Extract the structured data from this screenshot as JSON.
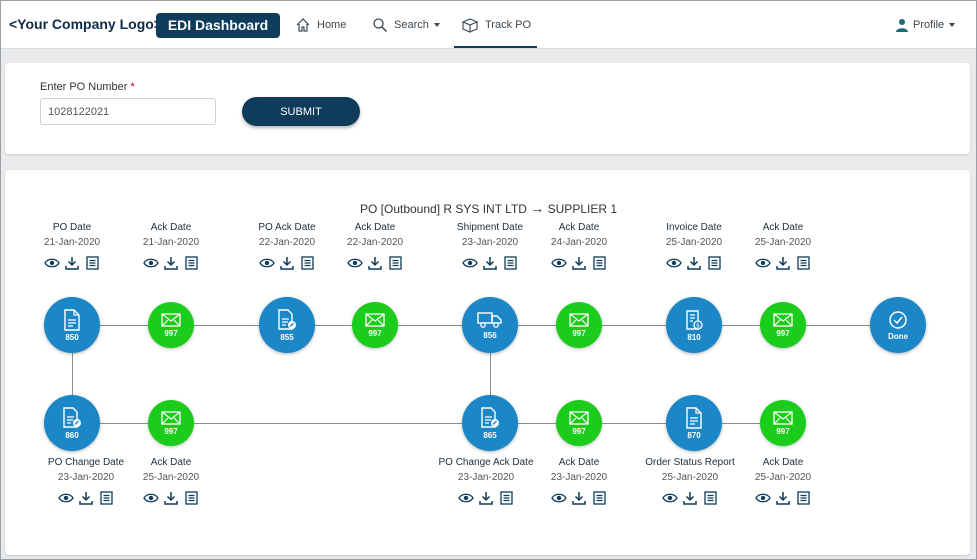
{
  "header": {
    "logo": "<Your Company Logo>",
    "brand": "EDI Dashboard",
    "nav": {
      "home": "Home",
      "search": "Search",
      "track": "Track PO",
      "profile": "Profile"
    }
  },
  "po_form": {
    "label": "Enter PO Number",
    "required_mark": "*",
    "value": "1028122021",
    "submit_label": "SUBMIT"
  },
  "flow": {
    "title_left": "PO [Outbound] R SYS INT LTD",
    "title_arrow": "→",
    "title_right": "SUPPLIER 1",
    "top_stages": [
      {
        "label": "PO Date",
        "date": "21-Jan-2020"
      },
      {
        "label": "Ack Date",
        "date": "21-Jan-2020"
      },
      {
        "label": "PO Ack Date",
        "date": "22-Jan-2020"
      },
      {
        "label": "Ack Date",
        "date": "22-Jan-2020"
      },
      {
        "label": "Shipment Date",
        "date": "23-Jan-2020"
      },
      {
        "label": "Ack Date",
        "date": "24-Jan-2020"
      },
      {
        "label": "Invoice Date",
        "date": "25-Jan-2020"
      },
      {
        "label": "Ack Date",
        "date": "25-Jan-2020"
      }
    ],
    "bottom_stages": [
      {
        "label": "PO Change Date",
        "date": "23-Jan-2020"
      },
      {
        "label": "Ack Date",
        "date": "25-Jan-2020"
      },
      {
        "label": "PO Change Ack Date",
        "date": "23-Jan-2020"
      },
      {
        "label": "Ack Date",
        "date": "23-Jan-2020"
      },
      {
        "label": "Order Status Report",
        "date": "25-Jan-2020"
      },
      {
        "label": "Ack Date",
        "date": "25-Jan-2020"
      }
    ],
    "top_nodes": [
      "850",
      "997",
      "855",
      "997",
      "856",
      "997",
      "810",
      "997",
      "Done"
    ],
    "bottom_nodes": [
      "860",
      "997",
      "865",
      "997",
      "870",
      "997"
    ]
  },
  "colors": {
    "brand": "#0e3c5a",
    "doc_node": "#1b87c6",
    "ack_node": "#1bcc1b"
  },
  "icons": [
    "home-icon",
    "search-icon",
    "box-icon",
    "user-icon",
    "eye-icon",
    "download-icon",
    "document-icon",
    "envelope-icon",
    "truck-icon",
    "invoice-icon",
    "check-icon"
  ]
}
